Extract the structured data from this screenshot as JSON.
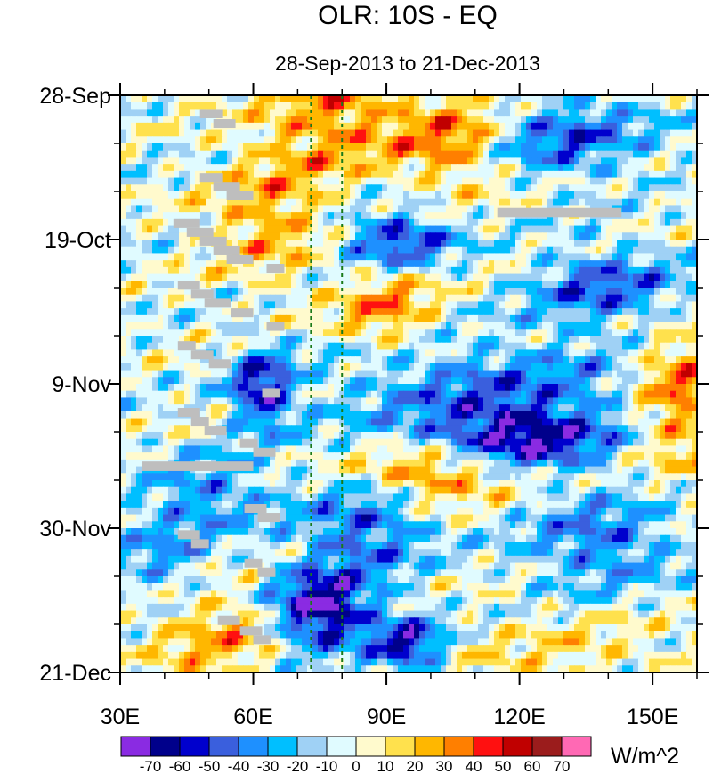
{
  "chart_data": {
    "type": "heatmap",
    "title": "OLR: 10S - EQ",
    "subtitle": "28-Sep-2013 to 21-Dec-2013",
    "x_axis": {
      "range": [
        30,
        160
      ],
      "ticks": [
        {
          "value": 30,
          "label": "30E"
        },
        {
          "value": 60,
          "label": "60E"
        },
        {
          "value": 90,
          "label": "90E"
        },
        {
          "value": 120,
          "label": "120E"
        },
        {
          "value": 150,
          "label": "150E"
        }
      ],
      "minor_step": 10
    },
    "y_axis": {
      "range_days": [
        0,
        84
      ],
      "direction": "time increases downward",
      "ticks": [
        {
          "value": 0,
          "label": "28-Sep"
        },
        {
          "value": 21,
          "label": "19-Oct"
        },
        {
          "value": 42,
          "label": "9-Nov"
        },
        {
          "value": 63,
          "label": "30-Nov"
        },
        {
          "value": 84,
          "label": "21-Dec"
        }
      ],
      "minor_step": 7
    },
    "reference_lines_lon": [
      73,
      80
    ],
    "colorbar": {
      "unit_label": "W/m^2",
      "levels": [
        -70,
        -60,
        -50,
        -40,
        -30,
        -20,
        -10,
        0,
        10,
        20,
        30,
        40,
        50,
        60,
        70
      ],
      "colors": [
        "#8a2be2",
        "#00008b",
        "#0000cd",
        "#3a5fdd",
        "#1e90ff",
        "#00bfff",
        "#9fd1f5",
        "#e0fbff",
        "#fffacd",
        "#ffe14d",
        "#ffb700",
        "#ff7f00",
        "#ff1010",
        "#c00000",
        "#9b1c1c",
        "#ff69b4"
      ]
    },
    "field_features": [
      {
        "lon": 78,
        "day": 3,
        "value": 35,
        "lon_sigma": 12,
        "day_sigma": 6
      },
      {
        "lon": 106,
        "day": 6,
        "value": 45,
        "lon_sigma": 9,
        "day_sigma": 5
      },
      {
        "lon": 64,
        "day": 18,
        "value": 30,
        "lon_sigma": 10,
        "day_sigma": 6
      },
      {
        "lon": 90,
        "day": 31,
        "value": 35,
        "lon_sigma": 8,
        "day_sigma": 4
      },
      {
        "lon": 100,
        "day": 55,
        "value": 45,
        "lon_sigma": 12,
        "day_sigma": 3
      },
      {
        "lon": 52,
        "day": 78,
        "value": 30,
        "lon_sigma": 12,
        "day_sigma": 5
      },
      {
        "lon": 156,
        "day": 44,
        "value": 45,
        "lon_sigma": 8,
        "day_sigma": 7
      },
      {
        "lon": 130,
        "day": 82,
        "value": 15,
        "lon_sigma": 20,
        "day_sigma": 5
      },
      {
        "lon": 92,
        "day": 21,
        "value": -50,
        "lon_sigma": 9,
        "day_sigma": 3
      },
      {
        "lon": 62,
        "day": 43,
        "value": -55,
        "lon_sigma": 5,
        "day_sigma": 4
      },
      {
        "lon": 75,
        "day": 75,
        "value": -75,
        "lon_sigma": 8,
        "day_sigma": 4
      },
      {
        "lon": 95,
        "day": 80,
        "value": -55,
        "lon_sigma": 6,
        "day_sigma": 3
      },
      {
        "lon": 128,
        "day": 6,
        "value": -40,
        "lon_sigma": 15,
        "day_sigma": 4
      },
      {
        "lon": 120,
        "day": 50,
        "value": -55,
        "lon_sigma": 15,
        "day_sigma": 3
      },
      {
        "lon": 115,
        "day": 43,
        "value": -35,
        "lon_sigma": 25,
        "day_sigma": 5
      },
      {
        "lon": 85,
        "day": 63,
        "value": -40,
        "lon_sigma": 10,
        "day_sigma": 5
      },
      {
        "lon": 140,
        "day": 28,
        "value": -40,
        "lon_sigma": 12,
        "day_sigma": 4
      },
      {
        "lon": 138,
        "day": 65,
        "value": -35,
        "lon_sigma": 12,
        "day_sigma": 5
      },
      {
        "lon": 50,
        "day": 58,
        "value": -30,
        "lon_sigma": 10,
        "day_sigma": 4
      },
      {
        "lon": 40,
        "day": 68,
        "value": -25,
        "lon_sigma": 8,
        "day_sigma": 5
      }
    ],
    "missing_blocks": [
      {
        "lon": [
          48,
          53
        ],
        "day": [
          2.0,
          3.3
        ]
      },
      {
        "lon": [
          51,
          56
        ],
        "day": [
          3.5,
          4.8
        ]
      },
      {
        "lon": [
          48,
          53
        ],
        "day": [
          11.3,
          12.6
        ]
      },
      {
        "lon": [
          51,
          57
        ],
        "day": [
          12.6,
          13.9
        ]
      },
      {
        "lon": [
          54,
          60
        ],
        "day": [
          13.9,
          15.2
        ]
      },
      {
        "lon": [
          42,
          48
        ],
        "day": [
          18.0,
          19.3
        ]
      },
      {
        "lon": [
          45,
          51
        ],
        "day": [
          19.3,
          20.6
        ]
      },
      {
        "lon": [
          48,
          54
        ],
        "day": [
          20.6,
          21.9
        ]
      },
      {
        "lon": [
          51,
          57
        ],
        "day": [
          21.9,
          23.2
        ]
      },
      {
        "lon": [
          54,
          60
        ],
        "day": [
          23.2,
          24.5
        ]
      },
      {
        "lon": [
          63,
          67
        ],
        "day": [
          24.5,
          25.8
        ]
      },
      {
        "lon": [
          43,
          48
        ],
        "day": [
          27.0,
          28.3
        ]
      },
      {
        "lon": [
          46,
          51
        ],
        "day": [
          28.3,
          29.6
        ]
      },
      {
        "lon": [
          49,
          55
        ],
        "day": [
          29.6,
          30.9
        ]
      },
      {
        "lon": [
          55,
          60
        ],
        "day": [
          31.0,
          32.3
        ]
      },
      {
        "lon": [
          63,
          67
        ],
        "day": [
          33.0,
          34.3
        ]
      },
      {
        "lon": [
          43,
          47
        ],
        "day": [
          35.8,
          37.1
        ]
      },
      {
        "lon": [
          46,
          51
        ],
        "day": [
          37.1,
          38.4
        ]
      },
      {
        "lon": [
          50,
          55
        ],
        "day": [
          38.4,
          39.7
        ]
      },
      {
        "lon": [
          62,
          66
        ],
        "day": [
          42.7,
          44.0
        ]
      },
      {
        "lon": [
          43,
          48
        ],
        "day": [
          45.5,
          46.8
        ]
      },
      {
        "lon": [
          46,
          50
        ],
        "day": [
          46.8,
          48.1
        ]
      },
      {
        "lon": [
          49,
          54
        ],
        "day": [
          48.1,
          49.4
        ]
      },
      {
        "lon": [
          57,
          61
        ],
        "day": [
          50.0,
          51.3
        ]
      },
      {
        "lon": [
          60,
          65
        ],
        "day": [
          51.3,
          52.6
        ]
      },
      {
        "lon": [
          35,
          60
        ],
        "day": [
          53.3,
          54.7
        ]
      },
      {
        "lon": [
          58,
          63
        ],
        "day": [
          59.5,
          60.8
        ]
      },
      {
        "lon": [
          61,
          66
        ],
        "day": [
          60.8,
          62.1
        ]
      },
      {
        "lon": [
          43,
          48
        ],
        "day": [
          63.3,
          64.6
        ]
      },
      {
        "lon": [
          46,
          50
        ],
        "day": [
          64.6,
          65.9
        ]
      },
      {
        "lon": [
          58,
          62
        ],
        "day": [
          67.5,
          68.8
        ]
      },
      {
        "lon": [
          61,
          65
        ],
        "day": [
          68.8,
          70.1
        ]
      },
      {
        "lon": [
          52,
          57
        ],
        "day": [
          75.8,
          77.1
        ]
      },
      {
        "lon": [
          57,
          62
        ],
        "day": [
          77.3,
          78.6
        ]
      },
      {
        "lon": [
          60,
          64
        ],
        "day": [
          78.6,
          79.9
        ]
      },
      {
        "lon": [
          115,
          143
        ],
        "day": [
          16.3,
          17.8
        ]
      }
    ]
  }
}
